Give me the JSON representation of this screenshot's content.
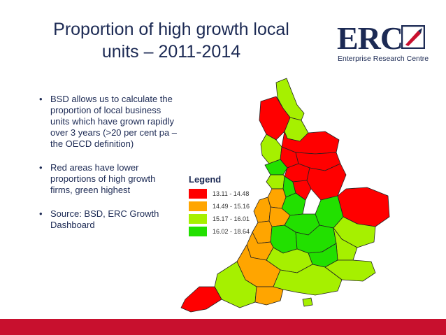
{
  "title": {
    "line1": "Proportion of high growth local",
    "line2": "units – 2011-2014"
  },
  "logo": {
    "letters": "ERC",
    "tagline": "Enterprise Research Centre",
    "colors": {
      "navy": "#1c2a54",
      "red": "#c8102e"
    }
  },
  "bullets": [
    {
      "symbol": "•",
      "text": "BSD allows us to calculate the proportion of local business units which have grown rapidly over 3 years (>20 per cent pa – the OECD definition)"
    },
    {
      "symbol": "•",
      "text": "Red areas have lower proportions of high growth firms, green highest"
    },
    {
      "symbol": "•",
      "text": "Source: BSD, ERC Growth Dashboard"
    }
  ],
  "legend": {
    "title": "Legend",
    "items": [
      {
        "label": "13.11 - 14.48",
        "color": "#ff0000"
      },
      {
        "label": "14.49 - 15.16",
        "color": "#ffa500"
      },
      {
        "label": "15.17 - 16.01",
        "color": "#a6f000"
      },
      {
        "label": "16.02 - 18.64",
        "color": "#22e000"
      }
    ]
  },
  "colors": {
    "footer": "#c8102e",
    "title": "#1c2a54",
    "region_border": "#222222"
  }
}
